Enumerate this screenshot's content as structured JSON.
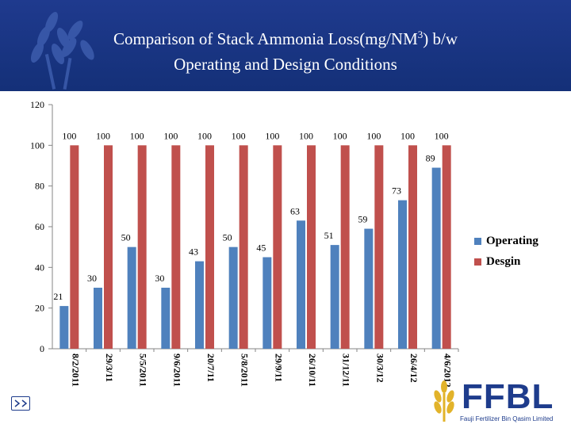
{
  "header": {
    "title_line1_pre": "Comparison of  Stack Ammonia Loss(mg/NM",
    "title_sup": "3",
    "title_line1_post": ")  b/w",
    "title_line2": "Operating and  Design  Conditions"
  },
  "chart_data": {
    "type": "bar",
    "title": "Comparison of  Stack Ammonia Loss(mg/NM3)  b/w Operating and  Design  Conditions",
    "categories": [
      "8/2/2011",
      "29/3/11",
      "5/5/2011",
      "9/6/2011",
      "20/7/11",
      "5/8/2011",
      "29/9/11",
      "26/10/11",
      "31/12/11",
      "30/3/12",
      "26/4/12",
      "4/6/2012"
    ],
    "series": [
      {
        "name": "Operating",
        "color": "#4f81bd",
        "values": [
          21,
          30,
          50,
          30,
          43,
          50,
          45,
          63,
          51,
          59,
          73,
          89
        ]
      },
      {
        "name": "Desgin",
        "color": "#c0504d",
        "values": [
          100,
          100,
          100,
          100,
          100,
          100,
          100,
          100,
          100,
          100,
          100,
          100
        ]
      }
    ],
    "ylim": [
      0,
      120
    ],
    "yticks": [
      0,
      20,
      40,
      60,
      80,
      100,
      120
    ],
    "legend": "right",
    "grid": false
  },
  "legend": {
    "items": [
      {
        "label": "Operating",
        "color": "#4f81bd"
      },
      {
        "label": "Desgin",
        "color": "#c0504d"
      }
    ]
  },
  "logo": {
    "word": "FFBL",
    "subtitle": "Fauji Fertilizer Bin Qasim Limited"
  },
  "icons": {
    "header": "wheat-icon",
    "nav": "slide-nav-icon",
    "logo": "ffbl-logo"
  }
}
